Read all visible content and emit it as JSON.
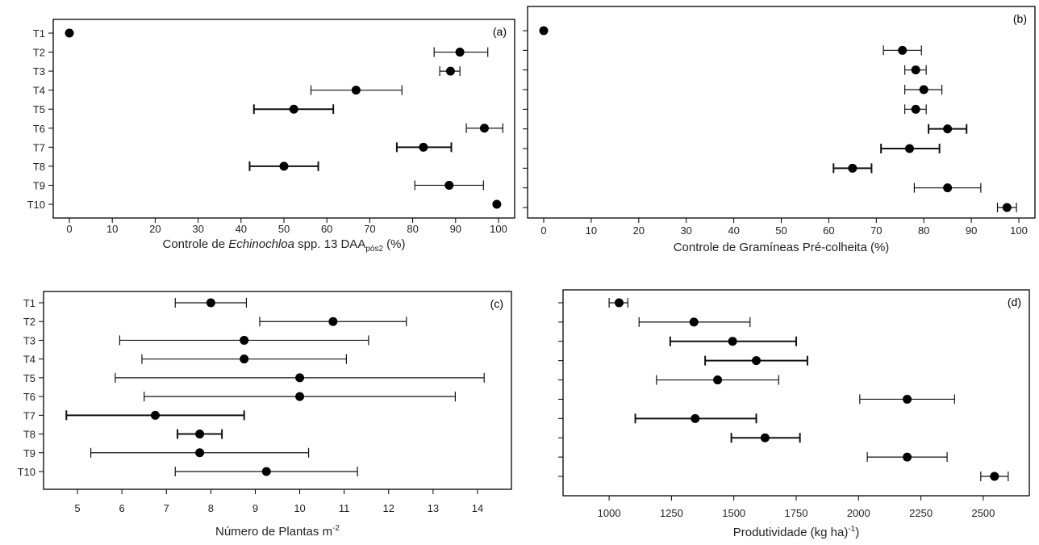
{
  "chart_data": [
    {
      "type": "scatter",
      "panel_label": "(a)",
      "categories": [
        "T1",
        "T2",
        "T3",
        "T4",
        "T5",
        "T6",
        "T7",
        "T8",
        "T9",
        "T10"
      ],
      "values": [
        0,
        91,
        88.8,
        66.8,
        52.3,
        96.7,
        82.5,
        50,
        88.5,
        99.6
      ],
      "error_low": [
        0,
        85,
        86.3,
        56.3,
        43,
        92.5,
        76.3,
        42,
        80.5,
        99.6
      ],
      "error_high": [
        0,
        97.5,
        91,
        77.5,
        61.5,
        101,
        89,
        58,
        96.5,
        99.6
      ],
      "xlim": [
        0,
        100
      ],
      "xticks": [
        0,
        10,
        20,
        30,
        40,
        50,
        60,
        70,
        80,
        90,
        100
      ],
      "xlabel_parts": {
        "before": "Controle de ",
        "italic": "Echinochloa",
        "after": " spp. 13 DAA",
        "sub": "pós2",
        "unit": " (%)"
      },
      "show_category_labels": true
    },
    {
      "type": "scatter",
      "panel_label": "(b)",
      "categories": [
        "T1",
        "T2",
        "T3",
        "T4",
        "T5",
        "T6",
        "T7",
        "T8",
        "T9",
        "T10"
      ],
      "values": [
        0,
        75.5,
        78.3,
        80,
        78.3,
        85,
        77,
        65,
        85,
        97.5
      ],
      "error_low": [
        0,
        71.5,
        76,
        76,
        76,
        81,
        71,
        61,
        78,
        95.5
      ],
      "error_high": [
        0,
        79.5,
        80.5,
        83.8,
        80.5,
        89,
        83.3,
        69,
        92,
        99.5
      ],
      "xlim": [
        0,
        100
      ],
      "xticks": [
        0,
        10,
        20,
        30,
        40,
        50,
        60,
        70,
        80,
        90,
        100
      ],
      "xlabel": "Controle de Gramíneas Pré-colheita (%)",
      "show_category_labels": false
    },
    {
      "type": "scatter",
      "panel_label": "(c)",
      "categories": [
        "T1",
        "T2",
        "T3",
        "T4",
        "T5",
        "T6",
        "T7",
        "T8",
        "T9",
        "T10"
      ],
      "values": [
        8,
        10.75,
        8.75,
        8.75,
        10,
        10,
        6.75,
        7.75,
        7.75,
        9.25
      ],
      "error_low": [
        7.2,
        9.1,
        5.95,
        6.45,
        5.85,
        6.5,
        4.75,
        7.25,
        5.3,
        7.2
      ],
      "error_high": [
        8.8,
        12.4,
        11.55,
        11.05,
        14.15,
        13.5,
        8.75,
        8.25,
        10.2,
        11.3
      ],
      "xlim": [
        4.6,
        14.4
      ],
      "xticks": [
        5,
        6,
        7,
        8,
        9,
        10,
        11,
        12,
        13,
        14
      ],
      "xlabel_parts": {
        "before": "Número de Plantas m",
        "sup": "-2"
      },
      "show_category_labels": true
    },
    {
      "type": "scatter",
      "panel_label": "(d)",
      "categories": [
        "T1",
        "T2",
        "T3",
        "T4",
        "T5",
        "T6",
        "T7",
        "T8",
        "T9",
        "T10"
      ],
      "values": [
        1040,
        1340,
        1495,
        1590,
        1435,
        2195,
        1345,
        1625,
        2195,
        2545
      ],
      "error_low": [
        1000,
        1120,
        1245,
        1385,
        1190,
        2005,
        1105,
        1490,
        2035,
        2490
      ],
      "error_high": [
        1075,
        1565,
        1750,
        1795,
        1680,
        2385,
        1590,
        1765,
        2355,
        2600
      ],
      "xlim": [
        880,
        2620
      ],
      "xticks": [
        1000,
        1250,
        1500,
        1750,
        2000,
        2250,
        2500
      ],
      "xlabel_parts": {
        "before": "Produtividade (kg ha",
        "sup": "-1",
        "after": ")"
      },
      "show_category_labels": false
    }
  ]
}
